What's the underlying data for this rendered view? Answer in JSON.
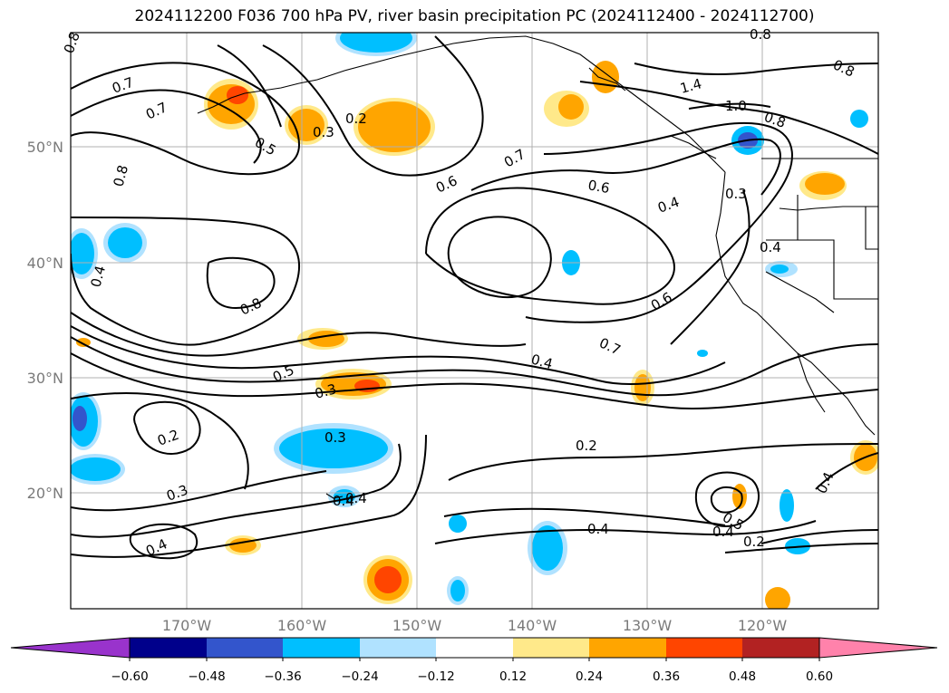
{
  "title": "2024112200 F036 700 hPa PV, river basin precipitation PC (2024112400 - 2024112700)",
  "latitude_labels": [
    "50°N",
    "40°N",
    "30°N",
    "20°N"
  ],
  "longitude_labels": [
    "170°W",
    "160°W",
    "150°W",
    "140°W",
    "130°W",
    "120°W"
  ],
  "contour_labels": [
    "0.8",
    "0.7",
    "0.7",
    "0.5",
    "0.3",
    "0.2",
    "0.6",
    "0.7",
    "0.6",
    "0.4",
    "1.4",
    "1.0",
    "0.8",
    "0.8",
    "0.8",
    "0.3",
    "0.8",
    "0.4",
    "0.4",
    "0.8",
    "0.6",
    "0.7",
    "0.5",
    "0.4",
    "0.3",
    "0.3",
    "0.2",
    "0.2",
    "0.3",
    "0.4",
    "0.4",
    "0.4",
    "0.5",
    "0.4",
    "0.2",
    "0.4",
    "0.4"
  ],
  "colorbar": {
    "ticks": [
      "−0.60",
      "−0.48",
      "−0.36",
      "−0.24",
      "−0.12",
      "0.12",
      "0.24",
      "0.36",
      "0.48",
      "0.60"
    ],
    "colors": [
      "#9933cc",
      "#00008b",
      "#3355cc",
      "#00bfff",
      "#b0e2ff",
      "#ffffff",
      "#ffe98a",
      "#ffa500",
      "#ff4500",
      "#b22222",
      "#ff82ab"
    ]
  },
  "colors": {
    "neg_strong": "#3355cc",
    "neg_mid": "#00bfff",
    "neg_light": "#b0e2ff",
    "pos_light": "#ffe98a",
    "pos_mid": "#ffa500",
    "pos_strong": "#ff4500"
  }
}
